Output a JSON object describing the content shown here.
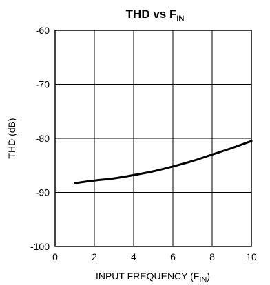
{
  "chart_data": {
    "type": "line",
    "title": "THD vs F",
    "title_subscript": "IN",
    "xlabel": "INPUT FREQUENCY (F",
    "xlabel_subscript": "IN",
    "xlabel_suffix": ")",
    "ylabel": "THD (dB)",
    "xlim": [
      0,
      10
    ],
    "ylim": [
      -100,
      -60
    ],
    "x_ticks": [
      "0",
      "2",
      "4",
      "6",
      "8",
      "10"
    ],
    "y_ticks": [
      "-60",
      "-70",
      "-80",
      "-90",
      "-100"
    ],
    "grid": true,
    "series": [
      {
        "x": [
          1,
          2,
          3,
          4,
          5,
          6,
          7,
          8,
          9,
          10
        ],
        "y": [
          -88.3,
          -87.8,
          -87.4,
          -86.8,
          -86.1,
          -85.2,
          -84.2,
          -83.0,
          -81.8,
          -80.5
        ],
        "color": "#000000"
      }
    ]
  }
}
